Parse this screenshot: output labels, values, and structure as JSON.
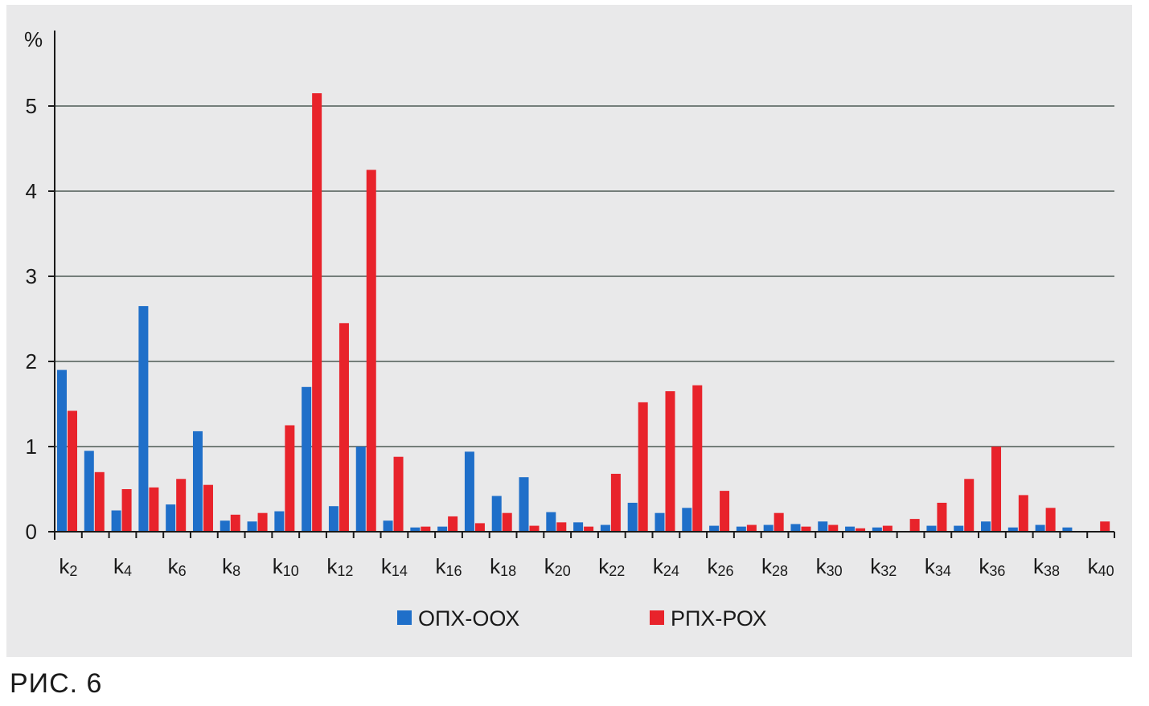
{
  "caption": "РИС. 6",
  "chart_data": {
    "type": "bar",
    "ylabel": "%",
    "ylim": [
      0,
      5.8
    ],
    "yticks": [
      0,
      1,
      2,
      3,
      4,
      5
    ],
    "grid": true,
    "legend_position": "bottom",
    "categories": [
      "k2",
      "k3",
      "k4",
      "k5",
      "k6",
      "k7",
      "k8",
      "k9",
      "k10",
      "k11",
      "k12",
      "k13",
      "k14",
      "k15",
      "k16",
      "k17",
      "k18",
      "k19",
      "k20",
      "k21",
      "k22",
      "k23",
      "k24",
      "k25",
      "k26",
      "k27",
      "k28",
      "k29",
      "k30",
      "k31",
      "k32",
      "k33",
      "k34",
      "k35",
      "k36",
      "k37",
      "k38",
      "k39",
      "k40"
    ],
    "category_labels_shown": [
      "k2",
      "k4",
      "k6",
      "k8",
      "k10",
      "k12",
      "k14",
      "k16",
      "k18",
      "k20",
      "k22",
      "k24",
      "k26",
      "k28",
      "k30",
      "k32",
      "k34",
      "k36",
      "k38",
      "k40"
    ],
    "series": [
      {
        "name": "ОПХ-ООХ",
        "color": "#1f6fc9",
        "values": [
          1.9,
          0.95,
          0.25,
          2.65,
          0.32,
          1.18,
          0.13,
          0.12,
          0.24,
          1.7,
          0.3,
          1.0,
          0.13,
          0.05,
          0.06,
          0.94,
          0.42,
          0.64,
          0.23,
          0.11,
          0.08,
          0.34,
          0.22,
          0.28,
          0.07,
          0.06,
          0.08,
          0.09,
          0.12,
          0.06,
          0.05,
          0.0,
          0.07,
          0.07,
          0.12,
          0.05,
          0.08,
          0.05,
          0.0
        ]
      },
      {
        "name": "РПХ-РОХ",
        "color": "#e8232b",
        "values": [
          1.42,
          0.7,
          0.5,
          0.52,
          0.62,
          0.55,
          0.2,
          0.22,
          1.25,
          5.15,
          2.45,
          4.25,
          0.88,
          0.06,
          0.18,
          0.1,
          0.22,
          0.07,
          0.11,
          0.06,
          0.68,
          1.52,
          1.65,
          1.72,
          0.48,
          0.08,
          0.22,
          0.06,
          0.08,
          0.04,
          0.07,
          0.15,
          0.34,
          0.62,
          1.0,
          0.43,
          0.28,
          0.0,
          0.12
        ]
      }
    ]
  }
}
